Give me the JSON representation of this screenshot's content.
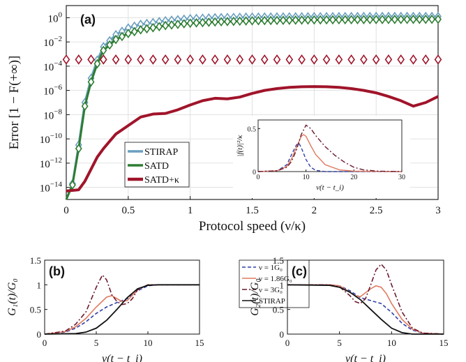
{
  "chart_data": [
    {
      "panel_label": "(a)",
      "type": "line",
      "xlabel": "Protocol speed (ν/κ)",
      "ylabel": "Error [1 − F(+∞)]",
      "xlim": [
        0,
        3
      ],
      "ylim_log10": [
        -15,
        1
      ],
      "y_scale": "log",
      "x_ticks": [
        "0",
        "0.5",
        "1",
        "1.5",
        "2",
        "2.5",
        "3"
      ],
      "y_ticks": [
        "10^0",
        "10^-2",
        "10^-4",
        "10^-6",
        "10^-8",
        "10^-10",
        "10^-12",
        "10^-14"
      ],
      "legend_placement": "lower-left",
      "grid": true,
      "series": [
        {
          "name": "STIRAP",
          "color": "#6a9fbf",
          "marker": "diamond",
          "x": [
            0,
            0.05,
            0.1,
            0.15,
            0.2,
            0.25,
            0.3,
            0.4,
            0.5,
            0.6,
            0.8,
            1.0,
            1.2,
            1.5,
            2.0,
            2.5,
            3.0
          ],
          "log10_y": [
            -15.0,
            -13.7,
            -10.5,
            -7.0,
            -5.0,
            -3.5,
            -2.4,
            -1.4,
            -0.85,
            -0.55,
            -0.25,
            -0.08,
            0.0,
            0.05,
            0.08,
            0.1,
            0.1
          ]
        },
        {
          "name": "SATD",
          "color": "#2e7d32",
          "marker": "diamond",
          "x": [
            0,
            0.05,
            0.1,
            0.15,
            0.2,
            0.25,
            0.3,
            0.4,
            0.5,
            0.6,
            0.8,
            1.0,
            1.2,
            1.5,
            2.0,
            2.5,
            3.0
          ],
          "log10_y": [
            -15.0,
            -13.8,
            -10.8,
            -7.3,
            -5.3,
            -3.8,
            -2.7,
            -1.8,
            -1.3,
            -1.0,
            -0.65,
            -0.45,
            -0.35,
            -0.25,
            -0.18,
            -0.15,
            -0.13
          ]
        },
        {
          "name": "SATD+κ",
          "color": "#a0142a",
          "marker": "diamond",
          "x": [
            0,
            0.05,
            0.1,
            0.15,
            0.2,
            0.25,
            0.3,
            0.35,
            0.4,
            0.5,
            0.6,
            0.7,
            0.8,
            0.9,
            1.0,
            1.1,
            1.2,
            1.3,
            1.4,
            1.5,
            1.6,
            1.7,
            1.8,
            1.9,
            2.0,
            2.1,
            2.2,
            2.3,
            2.4,
            2.5,
            2.6,
            2.7,
            2.8,
            2.9,
            3.0
          ],
          "log10_y": [
            -14.3,
            -14.25,
            -14.2,
            -13.5,
            -12.5,
            -11.5,
            -10.8,
            -10.2,
            -9.6,
            -8.9,
            -8.2,
            -7.95,
            -7.9,
            -7.6,
            -7.2,
            -6.85,
            -6.65,
            -6.7,
            -6.55,
            -6.25,
            -6.0,
            -5.85,
            -5.75,
            -5.7,
            -5.68,
            -5.7,
            -5.75,
            -5.85,
            -6.0,
            -6.2,
            -6.5,
            -6.85,
            -7.3,
            -7.0,
            -6.5
          ],
          "markers_log10_y": -3.45
        }
      ]
    },
    {
      "panel_label": "",
      "type": "line",
      "role": "inset of (a)",
      "xlabel": "ν(t − t_i)",
      "ylabel": "|f(t)|²/κ",
      "xlim": [
        0,
        30
      ],
      "ylim": [
        0,
        0.6
      ],
      "x_ticks": [
        "0",
        "10",
        "20",
        "30"
      ],
      "y_ticks": [
        "0",
        "0.5"
      ],
      "series": [
        {
          "color": "#2e3fa8",
          "dash": "dashed",
          "x": [
            0,
            4,
            6,
            7,
            8,
            8.5,
            9,
            10,
            11,
            12,
            14,
            30
          ],
          "y": [
            0,
            0.01,
            0.08,
            0.2,
            0.31,
            0.33,
            0.28,
            0.14,
            0.05,
            0.015,
            0.0,
            0.0
          ]
        },
        {
          "color": "#e07a5f",
          "dash": "solid",
          "x": [
            0,
            4,
            6,
            7,
            8,
            9,
            9.5,
            10,
            11,
            12,
            14,
            17,
            20,
            30
          ],
          "y": [
            0,
            0.01,
            0.06,
            0.15,
            0.28,
            0.41,
            0.43,
            0.41,
            0.3,
            0.2,
            0.08,
            0.02,
            0.005,
            0.0
          ]
        },
        {
          "color": "#6b1a2e",
          "dash": "dashdot",
          "x": [
            0,
            4,
            6,
            7,
            8,
            9,
            10,
            11,
            12,
            14,
            16,
            18,
            20,
            22,
            25,
            30
          ],
          "y": [
            0,
            0.01,
            0.05,
            0.12,
            0.25,
            0.43,
            0.54,
            0.5,
            0.42,
            0.29,
            0.19,
            0.11,
            0.05,
            0.02,
            0.005,
            0.0
          ]
        }
      ]
    },
    {
      "panel_label": "(b)",
      "type": "line",
      "xlabel": "ν(t − t_i)",
      "ylabel": "G₁(t)/G₀",
      "xlim": [
        0,
        15
      ],
      "ylim": [
        0,
        1.5
      ],
      "x_ticks": [
        "0",
        "5",
        "10",
        "15"
      ],
      "y_ticks": [
        "0",
        "0.5",
        "1",
        "1.5"
      ],
      "legend_placement": "right",
      "series": [
        {
          "name": "ν = 1G₀",
          "color": "#2e3fa8",
          "dash": "dashed",
          "x": [
            0,
            2,
            3,
            4,
            5,
            6,
            7,
            8,
            9,
            10,
            11,
            15
          ],
          "y": [
            0,
            0.04,
            0.12,
            0.25,
            0.42,
            0.55,
            0.64,
            0.72,
            0.88,
            0.98,
            1.0,
            1.0
          ]
        },
        {
          "name": "ν = 1.86G₀",
          "color": "#e07a5f",
          "dash": "solid",
          "x": [
            0,
            2,
            3,
            4,
            5,
            6,
            6.5,
            7,
            7.5,
            8,
            9,
            10,
            11,
            15
          ],
          "y": [
            0,
            0.05,
            0.15,
            0.32,
            0.55,
            0.75,
            0.78,
            0.72,
            0.66,
            0.68,
            0.9,
            1.0,
            1.0,
            1.0
          ]
        },
        {
          "name": "ν = 3G₀",
          "color": "#6b1a2e",
          "dash": "dashdot",
          "x": [
            0,
            2,
            3,
            4,
            5,
            5.6,
            6,
            6.5,
            7,
            7.5,
            8,
            8.5,
            9,
            10,
            11,
            15
          ],
          "y": [
            0,
            0.06,
            0.2,
            0.45,
            0.95,
            1.2,
            1.1,
            0.8,
            0.66,
            0.6,
            0.62,
            0.72,
            0.9,
            1.0,
            1.0,
            1.0
          ]
        },
        {
          "name": "STIRAP",
          "color": "#111111",
          "dash": "solid",
          "x": [
            0,
            3,
            4,
            5,
            6,
            7,
            8,
            9,
            10,
            11,
            15
          ],
          "y": [
            0,
            0.01,
            0.04,
            0.12,
            0.28,
            0.5,
            0.74,
            0.92,
            0.99,
            1.0,
            1.0
          ]
        }
      ]
    },
    {
      "panel_label": "(c)",
      "type": "line",
      "xlabel": "ν(t − t_i)",
      "ylabel": "G₂(t)/G₀",
      "xlim": [
        0,
        15
      ],
      "ylim": [
        0,
        1.5
      ],
      "x_ticks": [
        "0",
        "5",
        "10",
        "15"
      ],
      "y_ticks": [
        "0",
        "0.5",
        "1",
        "1.5"
      ],
      "series": [
        {
          "color": "#2e3fa8",
          "dash": "dashed",
          "x": [
            0,
            4,
            5,
            6,
            7,
            8,
            9,
            10,
            11,
            12,
            13,
            15
          ],
          "y": [
            1.0,
            1.0,
            0.98,
            0.88,
            0.74,
            0.68,
            0.62,
            0.44,
            0.22,
            0.08,
            0.02,
            0.0
          ]
        },
        {
          "color": "#e07a5f",
          "dash": "solid",
          "x": [
            0,
            4,
            5,
            6,
            6.5,
            7,
            8,
            8.5,
            9,
            9.5,
            10,
            11,
            12,
            13,
            15
          ],
          "y": [
            1.0,
            1.0,
            0.98,
            0.85,
            0.78,
            0.76,
            0.92,
            0.98,
            0.95,
            0.82,
            0.62,
            0.3,
            0.1,
            0.02,
            0.0
          ]
        },
        {
          "color": "#6b1a2e",
          "dash": "dashdot",
          "x": [
            0,
            4,
            5,
            6,
            6.5,
            7,
            7.5,
            8,
            8.5,
            9,
            9.5,
            10,
            11,
            12,
            13,
            15
          ],
          "y": [
            1.0,
            1.0,
            0.96,
            0.78,
            0.66,
            0.62,
            0.72,
            1.0,
            1.3,
            1.42,
            1.3,
            1.0,
            0.45,
            0.12,
            0.02,
            0.0
          ]
        },
        {
          "color": "#111111",
          "dash": "solid",
          "x": [
            0,
            4,
            5,
            6,
            7,
            8,
            9,
            10,
            11,
            12,
            15
          ],
          "y": [
            1.0,
            0.99,
            0.95,
            0.85,
            0.7,
            0.5,
            0.3,
            0.12,
            0.03,
            0.0,
            0.0
          ]
        }
      ]
    }
  ]
}
